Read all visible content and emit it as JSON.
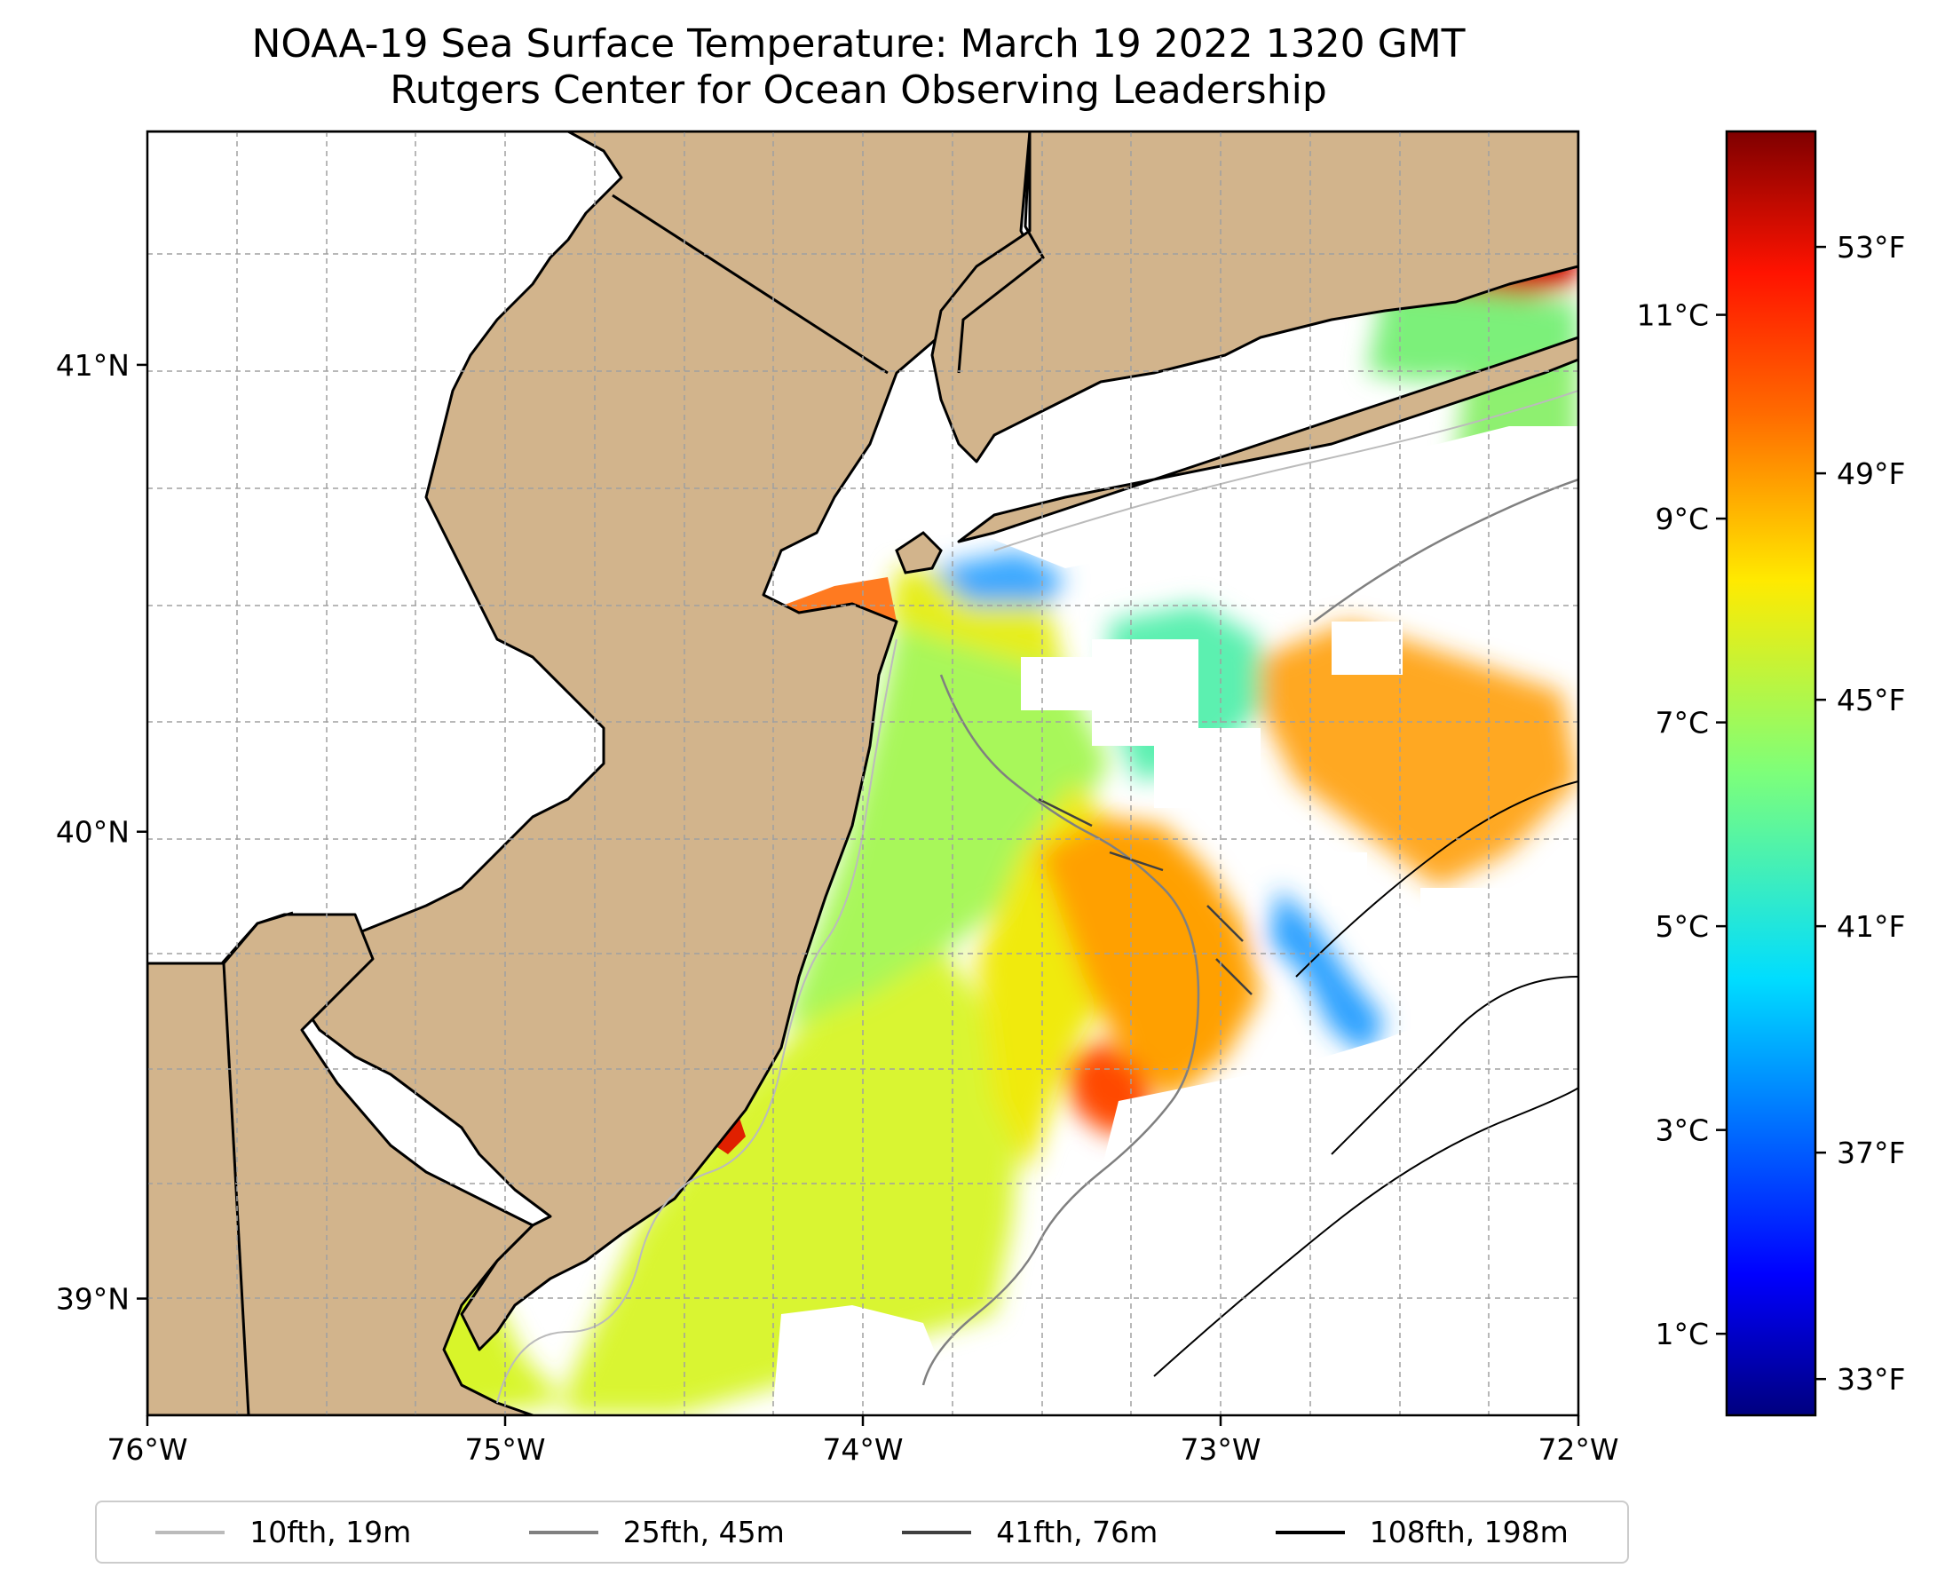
{
  "title": {
    "line1": "NOAA-19 Sea Surface Temperature: March 19 2022 1320 GMT",
    "line2": "Rutgers Center for Ocean Observing Leadership"
  },
  "map": {
    "lon_ticks": [
      {
        "value": -76,
        "label": "76°W"
      },
      {
        "value": -75,
        "label": "75°W"
      },
      {
        "value": -74,
        "label": "74°W"
      },
      {
        "value": -73,
        "label": "73°W"
      },
      {
        "value": -72,
        "label": "72°W"
      }
    ],
    "lat_ticks": [
      {
        "value": 41,
        "label": "41°N"
      },
      {
        "value": 40,
        "label": "40°N"
      },
      {
        "value": 39,
        "label": "39°N"
      }
    ],
    "lon_range": [
      -76,
      -72
    ],
    "lat_range": [
      38.75,
      41.5
    ],
    "land_color": "#d2b48c",
    "no_data_color": "#ffffff",
    "gridlines": true
  },
  "colorbar": {
    "colormap": "jet",
    "range_c": [
      0.2,
      12.8
    ],
    "celsius_ticks": [
      {
        "value": 1,
        "label": "1°C"
      },
      {
        "value": 3,
        "label": "3°C"
      },
      {
        "value": 5,
        "label": "5°C"
      },
      {
        "value": 7,
        "label": "7°C"
      },
      {
        "value": 9,
        "label": "9°C"
      },
      {
        "value": 11,
        "label": "11°C"
      }
    ],
    "fahrenheit_ticks": [
      {
        "value": 33,
        "label": "33°F"
      },
      {
        "value": 37,
        "label": "37°F"
      },
      {
        "value": 41,
        "label": "41°F"
      },
      {
        "value": 45,
        "label": "45°F"
      },
      {
        "value": 49,
        "label": "49°F"
      },
      {
        "value": 53,
        "label": "53°F"
      }
    ]
  },
  "legend": {
    "items": [
      {
        "label": "10fth, 19m",
        "color": "#bbbbbb"
      },
      {
        "label": "25fth, 45m",
        "color": "#808080"
      },
      {
        "label": "41fth, 76m",
        "color": "#404040"
      },
      {
        "label": "108fth, 198m",
        "color": "#000000"
      }
    ]
  }
}
